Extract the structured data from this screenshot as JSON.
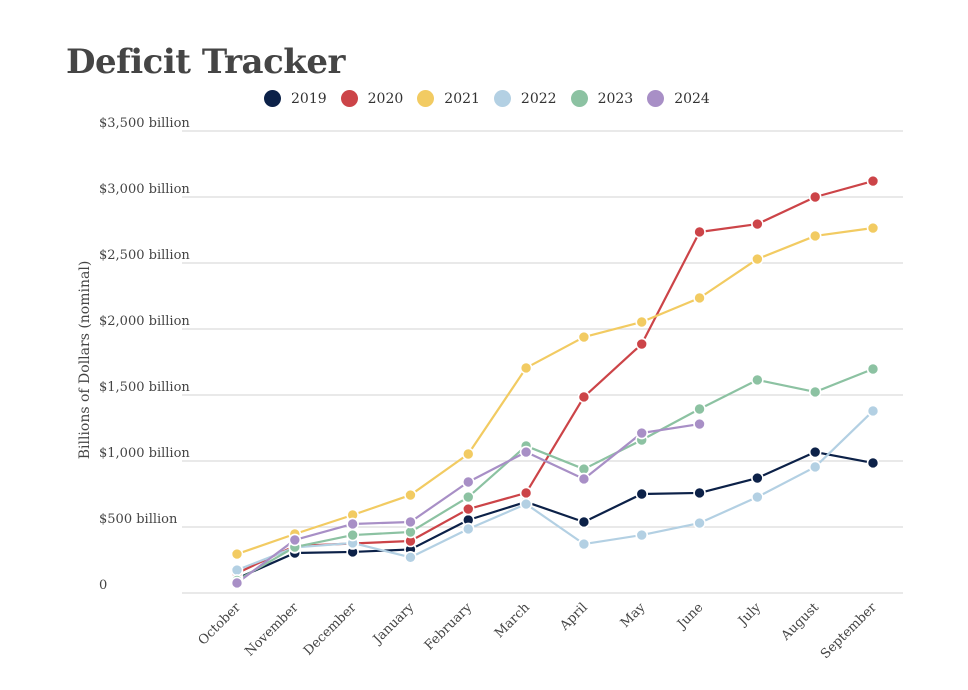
{
  "chart_data": {
    "type": "line",
    "title": "Deficit Tracker",
    "xlabel": "",
    "ylabel": "Billions of Dollars (nominal)",
    "ylim": [
      0,
      3500
    ],
    "yticks": [
      0,
      500,
      1000,
      1500,
      2000,
      2500,
      3000,
      3500
    ],
    "ytick_labels": [
      "0",
      "$500 billion",
      "$1,000 billion",
      "$1,500 billion",
      "$2,000 billion",
      "$2,500 billion",
      "$3,000 billion",
      "$3,500 billion"
    ],
    "grid": true,
    "legend_position": "top",
    "categories": [
      "October",
      "November",
      "December",
      "January",
      "February",
      "March",
      "April",
      "May",
      "June",
      "July",
      "August",
      "September"
    ],
    "series": [
      {
        "name": "2019",
        "color": "#0c2148",
        "values": [
          110,
          303,
          311,
          330,
          553,
          690,
          538,
          750,
          758,
          871,
          1068,
          985
        ]
      },
      {
        "name": "2020",
        "color": "#cc4448",
        "values": [
          150,
          356,
          375,
          394,
          636,
          758,
          1485,
          1886,
          2735,
          2795,
          3000,
          3121
        ]
      },
      {
        "name": "2021",
        "color": "#f2cb62",
        "values": [
          295,
          447,
          591,
          742,
          1053,
          1705,
          1939,
          2053,
          2235,
          2530,
          2705,
          2765
        ]
      },
      {
        "name": "2022",
        "color": "#b3d0e3",
        "values": [
          174,
          345,
          379,
          270,
          485,
          674,
          371,
          439,
          530,
          727,
          955,
          1379
        ]
      },
      {
        "name": "2023",
        "color": "#8cc2a2",
        "values": [
          95,
          348,
          439,
          462,
          727,
          1114,
          939,
          1159,
          1394,
          1614,
          1523,
          1697
        ]
      },
      {
        "name": "2024",
        "color": "#a88fc6",
        "values": [
          76,
          402,
          523,
          538,
          841,
          1068,
          864,
          1212,
          1280,
          null,
          null,
          null
        ]
      }
    ]
  }
}
